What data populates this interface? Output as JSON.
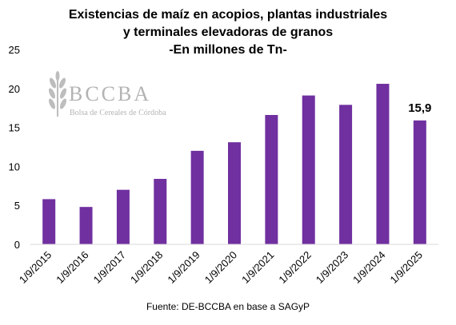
{
  "chart_data": {
    "type": "bar",
    "title_lines": [
      "Existencias de maíz en acopios, plantas industriales",
      "y terminales elevadoras de granos",
      "-En millones de Tn-"
    ],
    "categories": [
      "1/9/2015",
      "1/9/2016",
      "1/9/2017",
      "1/9/2018",
      "1/9/2019",
      "1/9/2020",
      "1/9/2021",
      "1/9/2022",
      "1/9/2023",
      "1/9/2024",
      "1/9/2025"
    ],
    "values": [
      5.8,
      4.8,
      7.0,
      8.4,
      12.0,
      13.1,
      16.6,
      19.1,
      17.9,
      20.6,
      15.9
    ],
    "ylim": [
      0,
      25
    ],
    "yticks": [
      0,
      5,
      10,
      15,
      20,
      25
    ],
    "data_labels": [
      {
        "index": 10,
        "text": "15,9"
      }
    ],
    "bar_color": "#7030a0",
    "grid": false,
    "legend": "none",
    "source": "Fuente: DE-BCCBA en base a SAGyP"
  },
  "watermark": {
    "logo_text": "BCCBA",
    "subtitle": "Bolsa de Cereales de Córdoba"
  }
}
